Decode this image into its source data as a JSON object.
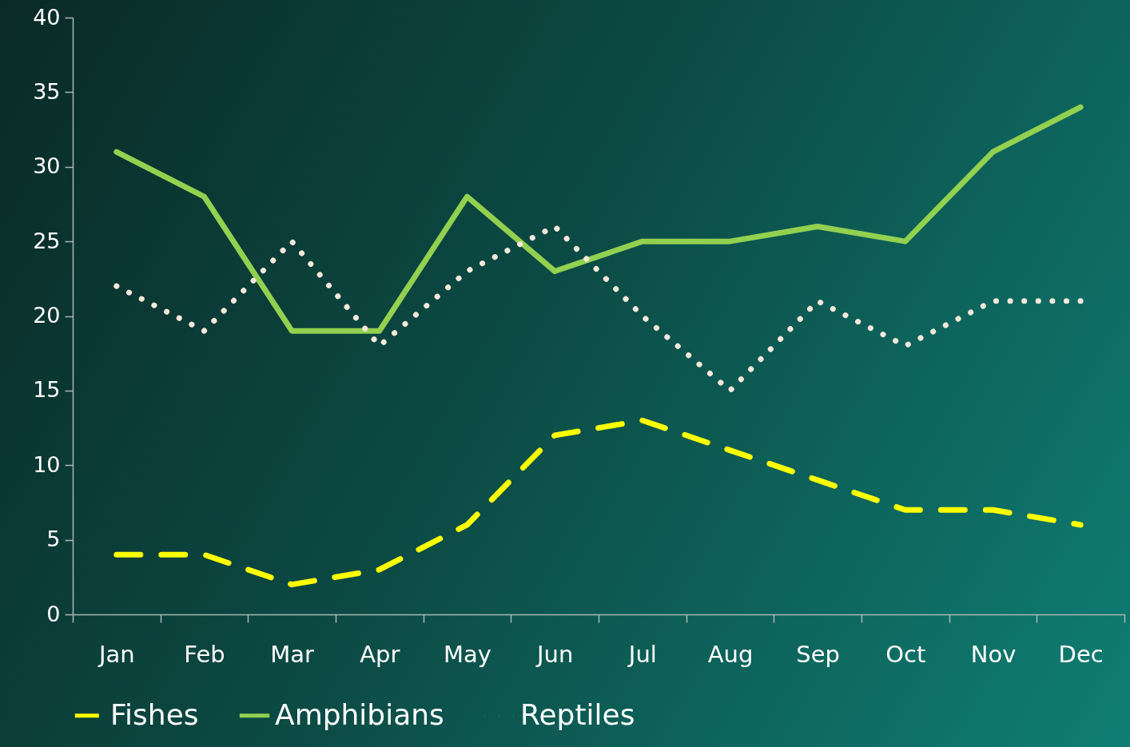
{
  "chart_data": {
    "type": "line",
    "categories": [
      "Jan",
      "Feb",
      "Mar",
      "Apr",
      "May",
      "Jun",
      "Jul",
      "Aug",
      "Sep",
      "Oct",
      "Nov",
      "Dec"
    ],
    "series": [
      {
        "name": "Fishes",
        "color": "#ffff00",
        "line_style": "dashed",
        "values": [
          4,
          4,
          2,
          3,
          6,
          12,
          13,
          11,
          9,
          7,
          7,
          6
        ]
      },
      {
        "name": "Amphibians",
        "color": "#92d050",
        "line_style": "solid",
        "values": [
          31,
          28,
          19,
          19,
          28,
          23,
          25,
          25,
          26,
          25,
          31,
          34
        ]
      },
      {
        "name": "Reptiles",
        "color": "#f5e8dc",
        "line_style": "dotted",
        "values": [
          22,
          19,
          25,
          18,
          23,
          26,
          20,
          15,
          21,
          18,
          21,
          21
        ]
      }
    ],
    "ylim": [
      0,
      40
    ],
    "yticks": [
      0,
      5,
      10,
      15,
      20,
      25,
      30,
      35,
      40
    ],
    "grid": false,
    "legend": "bottom",
    "marker": "none"
  }
}
